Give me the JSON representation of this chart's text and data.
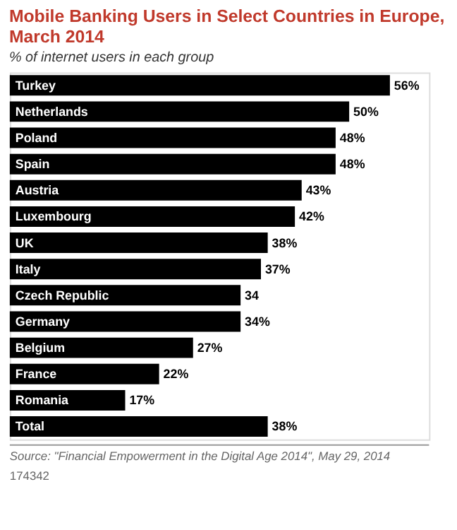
{
  "chart_data": {
    "type": "bar",
    "orientation": "horizontal",
    "title": "Mobile Banking Users in Select Countries in Europe, March 2014",
    "subtitle": "% of internet users in each group",
    "categories": [
      "Turkey",
      "Netherlands",
      "Poland",
      "Spain",
      "Austria",
      "Luxembourg",
      "UK",
      "Italy",
      "Czech Republic",
      "Germany",
      "Belgium",
      "France",
      "Romania",
      "Total"
    ],
    "values": [
      56,
      50,
      48,
      48,
      43,
      42,
      38,
      37,
      34,
      34,
      27,
      22,
      17,
      38
    ],
    "value_labels": [
      "56%",
      "50%",
      "48%",
      "48%",
      "43%",
      "42%",
      "38%",
      "37%",
      "34",
      "34%",
      "27%",
      "22%",
      "17%",
      "38%"
    ],
    "color": "#000000",
    "annotations": [
      "Source: \"Financial Empowerment in the Digital Age 2014\", May 29, 2014",
      "174342"
    ]
  }
}
